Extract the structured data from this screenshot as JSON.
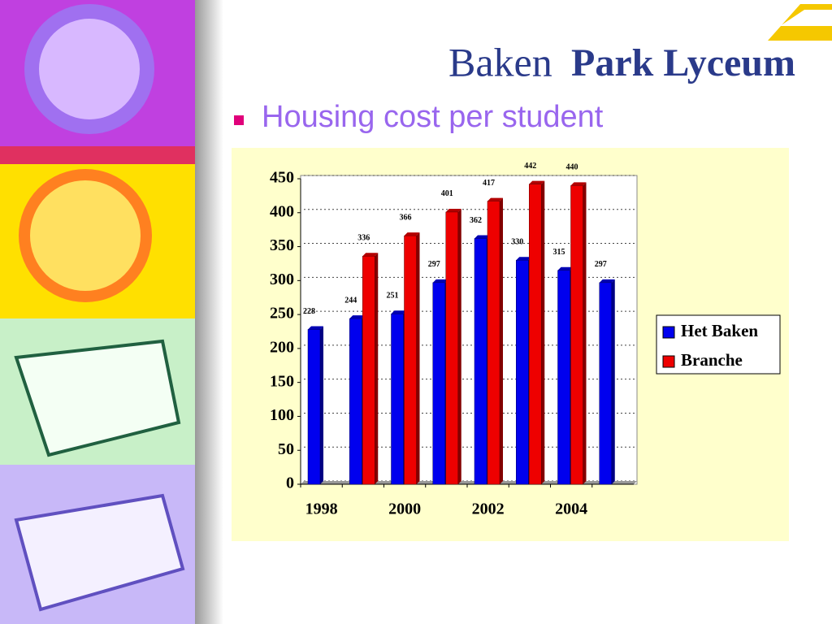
{
  "header": {
    "logo": [
      "Baken",
      "Park Lyceum"
    ],
    "bullet_title": "Housing cost per student"
  },
  "chart_data": {
    "type": "bar",
    "categories": [
      "1998",
      null,
      "2000",
      null,
      "2002",
      null,
      "2004",
      null
    ],
    "series": [
      {
        "name": "Het Baken",
        "color": "#0000ee",
        "values": [
          228,
          244,
          251,
          297,
          362,
          330,
          315,
          297
        ],
        "value_labels": [
          "228",
          "244",
          "251",
          "297",
          "362",
          "330",
          "315",
          "297"
        ]
      },
      {
        "name": "Branche",
        "color": "#ee0000",
        "values": [
          null,
          336,
          366,
          401,
          417,
          442,
          440,
          null
        ],
        "value_labels": [
          null,
          "336",
          "366",
          "401",
          "417",
          "442",
          "440",
          null
        ]
      }
    ],
    "ylim": [
      0,
      450
    ],
    "yticks": [
      0,
      50,
      100,
      150,
      200,
      250,
      300,
      350,
      400,
      450
    ],
    "grid": true,
    "legend": "right"
  }
}
